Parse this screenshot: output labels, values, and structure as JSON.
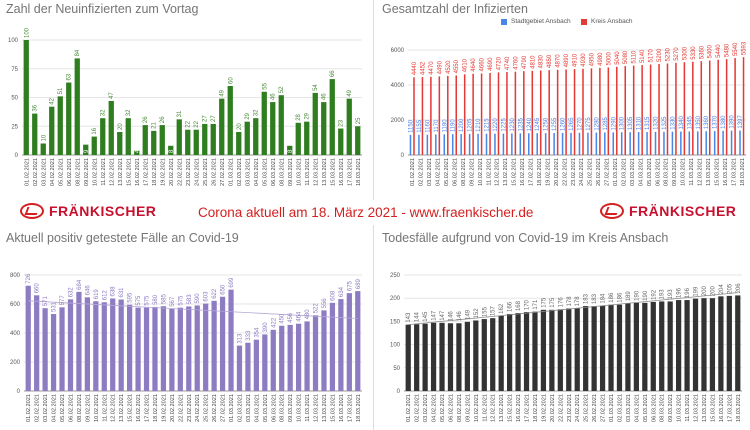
{
  "banner": {
    "logo_left": "FRÄNKISCHER",
    "logo_right": "FRÄNKISCHER",
    "headline": "Corona aktuell am 18. März 2021 - www.fraenkischer.de"
  },
  "dates": [
    "01.02.2021",
    "02.02.2021",
    "03.02.2021",
    "04.02.2021",
    "05.02.2021",
    "06.02.2021",
    "08.02.2021",
    "09.02.2021",
    "10.02.2021",
    "11.02.2021",
    "12.02.2021",
    "13.02.2021",
    "15.02.2021",
    "16.02.2021",
    "17.02.2021",
    "18.02.2021",
    "19.02.2021",
    "20.02.2021",
    "22.02.2021",
    "23.02.2021",
    "24.02.2021",
    "25.02.2021",
    "26.02.2021",
    "27.02.2021",
    "01.03.2021",
    "02.03.2021",
    "03.03.2021",
    "04.03.2021",
    "05.03.2021",
    "06.03.2021",
    "08.03.2021",
    "09.03.2021",
    "10.03.2021",
    "11.03.2021",
    "12.03.2021",
    "13.03.2021",
    "15.03.2021",
    "16.03.2021",
    "17.03.2021",
    "18.03.2021"
  ],
  "chart_data": [
    {
      "type": "bar",
      "title": "Zahl der Neuinfizierten zum Vortag",
      "ylim": [
        0,
        100
      ],
      "yticks": [
        0,
        25,
        50,
        75,
        100
      ],
      "color": "#2e7d1e",
      "label_color": "#4a8a3a",
      "series": [
        {
          "name": "Neuinfizierte",
          "values": [
            100,
            36,
            10,
            42,
            51,
            63,
            84,
            9,
            16,
            32,
            47,
            20,
            32,
            4,
            26,
            21,
            26,
            8,
            31,
            22,
            22,
            27,
            27,
            49,
            60,
            20,
            29,
            32,
            55,
            46,
            52,
            8,
            28,
            29,
            54,
            46,
            66,
            23,
            49,
            25
          ]
        }
      ]
    },
    {
      "type": "bar",
      "title": "Gesamtzahl der Infizierten",
      "ylim": [
        0,
        6000
      ],
      "yticks": [
        0,
        2000,
        4000,
        6000
      ],
      "legend": "top",
      "series": [
        {
          "name": "Stadtgebiet Ansbach",
          "color": "#4a86e8",
          "values": [
            1150,
            1155,
            1160,
            1170,
            1180,
            1190,
            1200,
            1205,
            1210,
            1215,
            1220,
            1225,
            1230,
            1235,
            1240,
            1245,
            1250,
            1255,
            1260,
            1265,
            1270,
            1275,
            1280,
            1285,
            1290,
            1300,
            1305,
            1310,
            1315,
            1320,
            1325,
            1330,
            1340,
            1345,
            1350,
            1360,
            1370,
            1380,
            1390,
            1397
          ]
        },
        {
          "name": "Kreis Ansbach",
          "color": "#e53935",
          "values": [
            4440,
            4452,
            4470,
            4490,
            4520,
            4550,
            4610,
            4640,
            4660,
            4690,
            4720,
            4740,
            4760,
            4790,
            4810,
            4830,
            4850,
            4870,
            4890,
            4910,
            4930,
            4950,
            4980,
            5000,
            5040,
            5080,
            5110,
            5140,
            5170,
            5200,
            5230,
            5270,
            5300,
            5330,
            5360,
            5400,
            5440,
            5480,
            5540,
            5593
          ]
        }
      ]
    },
    {
      "type": "bar",
      "title": "Aktuell positiv getestete Fälle an Covid-19",
      "ylim": [
        0,
        800
      ],
      "yticks": [
        0,
        200,
        400,
        600,
        800
      ],
      "color": "#8e7cc3",
      "label_color": "#8e7cc3",
      "trendline": [
        622,
        500
      ],
      "series": [
        {
          "name": "Aktuell positiv",
          "values": [
            726,
            660,
            571,
            531,
            577,
            632,
            684,
            646,
            619,
            612,
            638,
            631,
            595,
            575,
            575,
            580,
            585,
            567,
            575,
            583,
            590,
            603,
            622,
            650,
            699,
            313,
            333,
            354,
            390,
            422,
            450,
            456,
            464,
            480,
            522,
            556,
            608,
            634,
            675,
            689
          ]
        }
      ]
    },
    {
      "type": "bar",
      "title": "Todesfälle aufgrund von Covid-19 im Kreis Ansbach",
      "ylim": [
        0,
        250
      ],
      "yticks": [
        0,
        50,
        100,
        150,
        200,
        250
      ],
      "color": "#333333",
      "label_color": "#666666",
      "trendline": [
        143,
        212
      ],
      "series": [
        {
          "name": "Todesfälle",
          "values": [
            143,
            144,
            145,
            147,
            147,
            146,
            146,
            149,
            152,
            155,
            157,
            162,
            166,
            168,
            170,
            171,
            175,
            175,
            176,
            178,
            178,
            183,
            183,
            184,
            186,
            186,
            189,
            190,
            190,
            192,
            193,
            193,
            196,
            196,
            199,
            200,
            200,
            204,
            205,
            206
          ]
        }
      ]
    }
  ]
}
